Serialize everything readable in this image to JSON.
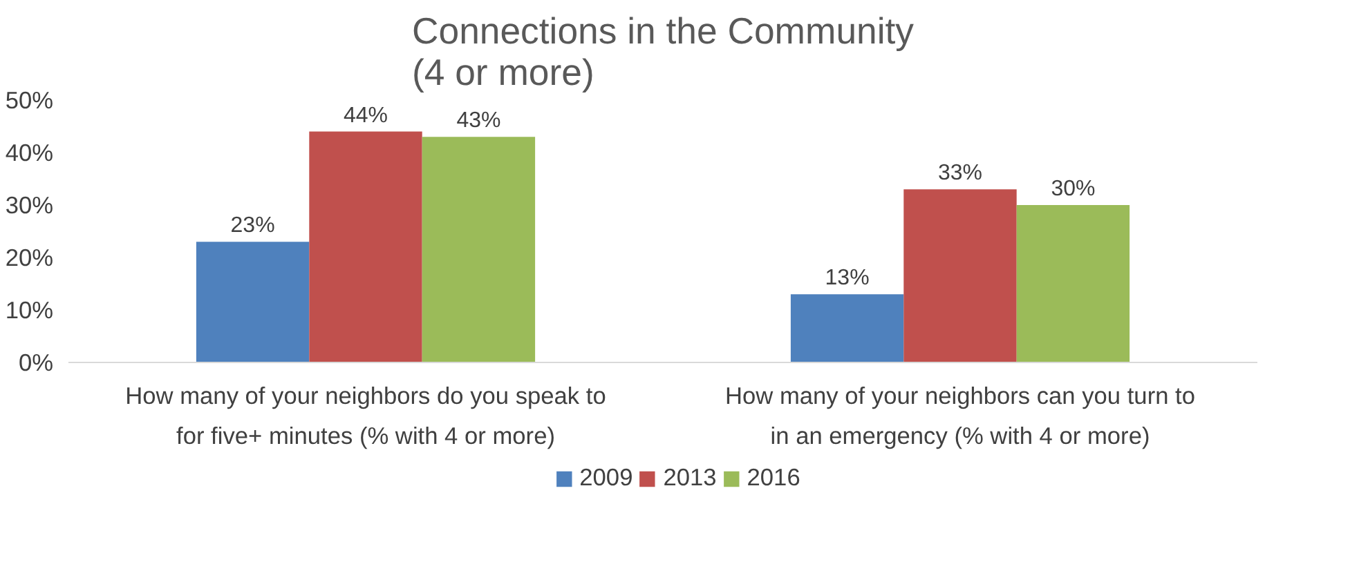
{
  "chart_data": {
    "type": "bar",
    "title": "Connections in the Community\n(4 or more)",
    "categories": [
      "How many of your neighbors do you speak to\nfor five+ minutes (% with 4 or more)",
      "How many of your neighbors can you turn to\nin an emergency (% with 4 or more)"
    ],
    "series": [
      {
        "name": "2009",
        "color": "#4f81bd",
        "values": [
          23,
          13
        ],
        "value_labels": [
          "23%",
          "13%"
        ]
      },
      {
        "name": "2013",
        "color": "#c0504d",
        "values": [
          44,
          33
        ],
        "value_labels": [
          "44%",
          "33%"
        ]
      },
      {
        "name": "2016",
        "color": "#9bbb59",
        "values": [
          43,
          30
        ],
        "value_labels": [
          "43%",
          "30%"
        ]
      }
    ],
    "ylim": [
      0,
      50
    ],
    "yticks": [
      {
        "value": 0,
        "label": "0%"
      },
      {
        "value": 10,
        "label": "10%"
      },
      {
        "value": 20,
        "label": "20%"
      },
      {
        "value": 30,
        "label": "30%"
      },
      {
        "value": 40,
        "label": "40%"
      },
      {
        "value": 50,
        "label": "50%"
      }
    ],
    "grid": false,
    "legend": "bottom"
  }
}
